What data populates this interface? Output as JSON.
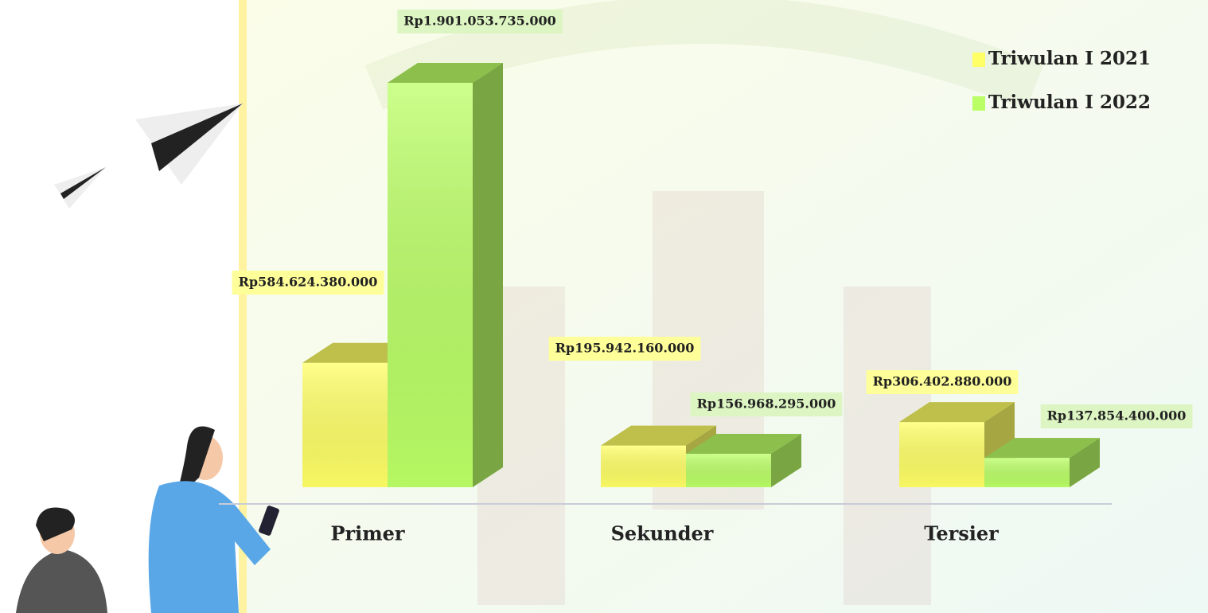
{
  "chart_data": {
    "type": "bar3d",
    "categories": [
      "Primer",
      "Sekunder",
      "Tersier"
    ],
    "series": [
      {
        "name": "Triwulan I 2021",
        "color": "#ffff66",
        "values": [
          584624380000,
          195942160000,
          306402880000
        ],
        "value_labels": [
          "Rp584.624.380.000",
          "Rp195.942.160.000",
          "Rp306.402.880.000"
        ]
      },
      {
        "name": "Triwulan I 2022",
        "color": "#bbff66",
        "values": [
          1901053735000,
          156968295000,
          137854400000
        ],
        "value_labels": [
          "Rp1.901.053.735.000",
          "Rp156.968.295.000",
          "Rp137.854.400.000"
        ]
      }
    ],
    "legend": "top-right"
  }
}
